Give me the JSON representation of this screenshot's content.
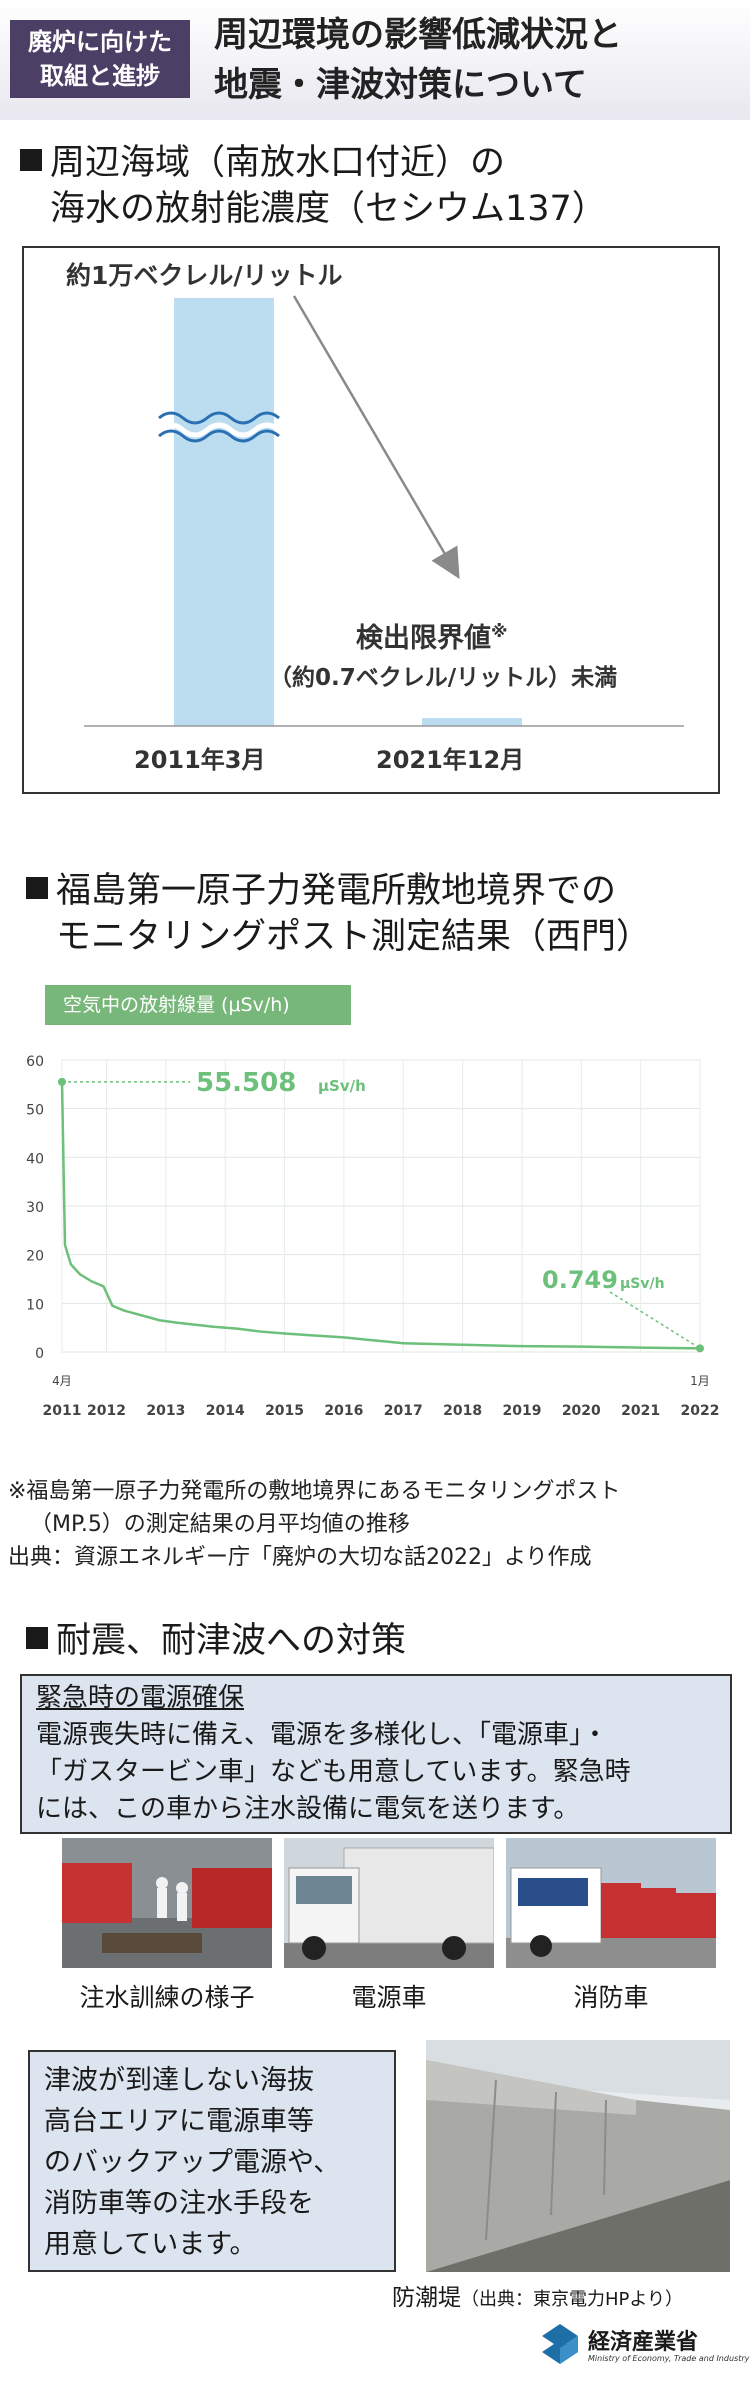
{
  "header": {
    "badge_line1": "廃炉に向けた",
    "badge_line2": "取組と進捗",
    "title_line1": "周辺環境の影響低減状況と",
    "title_line2": "地震・津波対策について"
  },
  "section1": {
    "title_line1": "周辺海域（南放水口付近）の",
    "title_line2": "海水の放射能濃度（セシウム137）",
    "top_value_label": "約1万ベクレル/リットル",
    "limit_label": "検出限界値",
    "limit_mark": "※",
    "limit_sub": "（約0.7ベクレル/リットル）未満",
    "chart_data": {
      "type": "bar",
      "categories": [
        "2011年3月",
        "2021年12月"
      ],
      "values": [
        10000,
        0.7
      ]
    }
  },
  "section2": {
    "title_line1": "福島第一原子力発電所敷地境界での",
    "title_line2": "モニタリングポスト測定結果（西門）",
    "chart_tag": "空気中の放射線量 (μSv/h)",
    "peak_value": "55.508",
    "peak_unit": "μSv/h",
    "end_value": "0.749",
    "end_unit": "μSv/h",
    "start_month": "4月",
    "end_month": "1月",
    "yticks": [
      "60",
      "50",
      "40",
      "30",
      "20",
      "10",
      "0"
    ],
    "xticks": [
      "2011",
      "2012",
      "2013",
      "2014",
      "2015",
      "2016",
      "2017",
      "2018",
      "2019",
      "2020",
      "2021",
      "2022"
    ],
    "note_line1": "※福島第一原子力発電所の敷地境界にあるモニタリングポスト",
    "note_line2": "（MP.5）の測定結果の月平均値の推移",
    "source": "出典：資源エネルギー庁「廃炉の大切な話2022」より作成",
    "chart_data": {
      "type": "line",
      "ylim": [
        0,
        60
      ],
      "x": [
        2011.25,
        2011.3,
        2011.4,
        2011.55,
        2011.75,
        2011.95,
        2012.1,
        2012.3,
        2012.6,
        2012.9,
        2013.2,
        2013.5,
        2013.8,
        2014.2,
        2014.6,
        2015.0,
        2015.5,
        2016.0,
        2016.5,
        2017.0,
        2018.0,
        2019.0,
        2020.0,
        2021.0,
        2022.0
      ],
      "y": [
        55.508,
        22,
        18,
        16,
        14.5,
        13.5,
        9.5,
        8.5,
        7.5,
        6.5,
        6,
        5.6,
        5.2,
        4.8,
        4.2,
        3.8,
        3.4,
        3.0,
        2.4,
        1.8,
        1.5,
        1.2,
        1.1,
        0.9,
        0.749
      ]
    }
  },
  "section3": {
    "title": "耐震、耐津波への対策",
    "box1_heading": "緊急時の電源確保",
    "box1_text_line1": "電源喪失時に備え、電源を多様化し、「電源車」・",
    "box1_text_line2": "「ガスタービン車」なども用意しています。緊急時",
    "box1_text_line3": "には、この車から注水設備に電気を送ります。",
    "photo_captions": [
      "注水訓練の様子",
      "電源車",
      "消防車"
    ],
    "box2_line1": "津波が到達しない海抜",
    "box2_line2": "高台エリアに電源車等",
    "box2_line3": "のバックアップ電源や、",
    "box2_line4": "消防車等の注水手段を",
    "box2_line5": "用意しています。",
    "seawall_caption": "防潮堤",
    "seawall_source": "（出典：東京電力HPより）"
  },
  "footer": {
    "ministry_name": "経済産業省",
    "ministry_en": "Ministry of Economy, Trade and Industry"
  },
  "colors": {
    "badge": "#4b3f66",
    "bar": "#bcdcef",
    "line": "#6cc07a",
    "infobox": "#dce4ef",
    "ministry": "#1e6fa8"
  }
}
